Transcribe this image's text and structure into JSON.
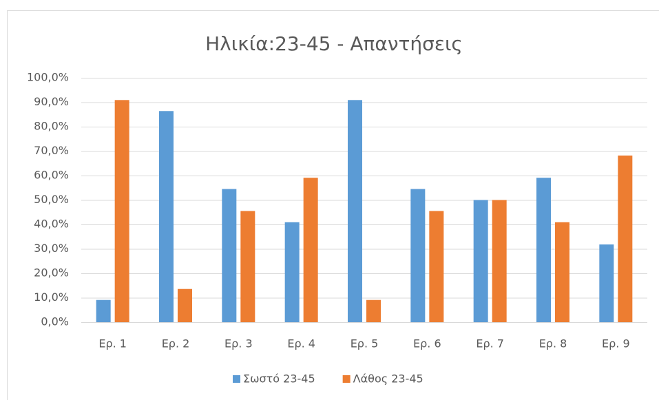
{
  "chart_data": {
    "type": "bar",
    "title": "Ηλικία:23-45 - Απαντήσεις",
    "categories": [
      "Ερ. 1",
      "Ερ. 2",
      "Ερ. 3",
      "Ερ. 4",
      "Ερ. 5",
      "Ερ. 6",
      "Ερ. 7",
      "Ερ. 8",
      "Ερ. 9"
    ],
    "series": [
      {
        "name": "Σωστό 23-45",
        "color": "#5b9bd5",
        "values": [
          9.1,
          86.4,
          54.5,
          40.9,
          90.9,
          54.5,
          50.0,
          59.1,
          31.8
        ]
      },
      {
        "name": "Λάθος 23-45",
        "color": "#ed7d31",
        "values": [
          90.9,
          13.6,
          45.5,
          59.1,
          9.1,
          45.5,
          50.0,
          40.9,
          68.2
        ]
      }
    ],
    "ylim": [
      0,
      100
    ],
    "yticks": [
      {
        "value": 0,
        "label": "0,0%"
      },
      {
        "value": 10,
        "label": "10,0%"
      },
      {
        "value": 20,
        "label": "20,0%"
      },
      {
        "value": 30,
        "label": "30,0%"
      },
      {
        "value": 40,
        "label": "40,0%"
      },
      {
        "value": 50,
        "label": "50,0%"
      },
      {
        "value": 60,
        "label": "60,0%"
      },
      {
        "value": 70,
        "label": "70,0%"
      },
      {
        "value": 80,
        "label": "80,0%"
      },
      {
        "value": 90,
        "label": "90,0%"
      },
      {
        "value": 100,
        "label": "100,0%"
      }
    ],
    "grid": true,
    "legend": "bottom"
  }
}
